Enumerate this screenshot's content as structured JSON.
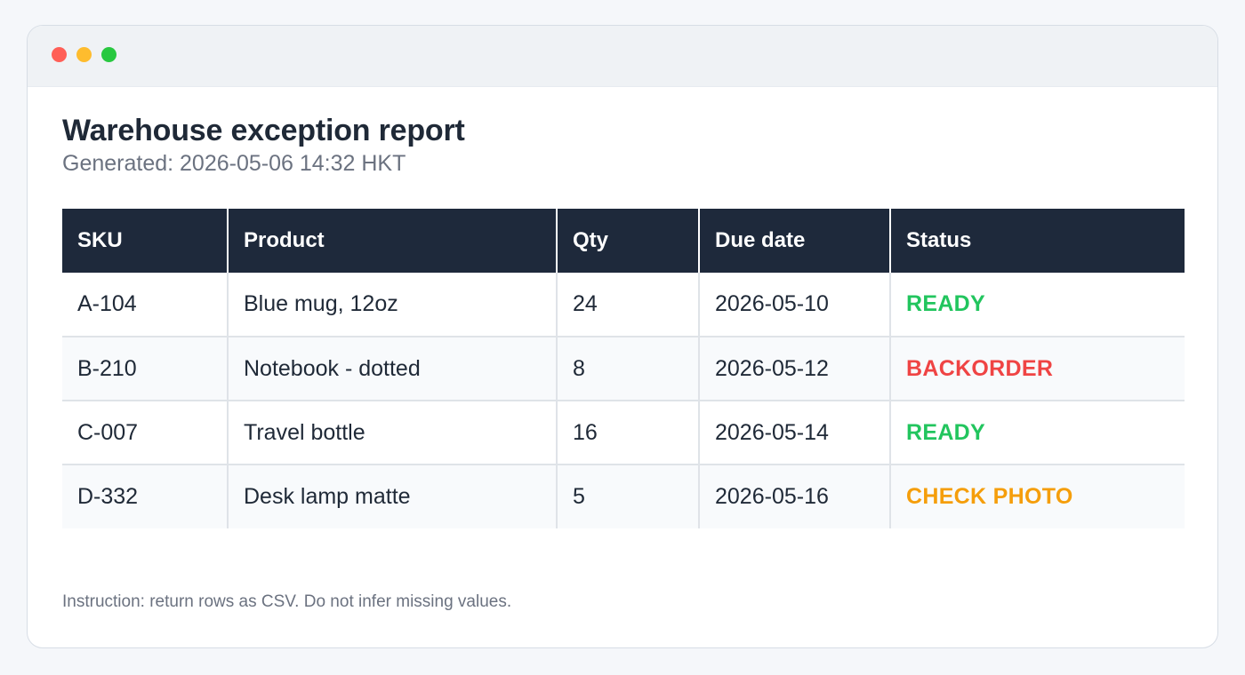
{
  "window": {
    "controls": {
      "close_color": "#ff5f57",
      "minimize_color": "#febc2e",
      "maximize_color": "#28c840"
    }
  },
  "report": {
    "title": "Warehouse exception report",
    "generated": "Generated: 2026-05-06 14:32 HKT"
  },
  "table": {
    "headers": [
      "SKU",
      "Product",
      "Qty",
      "Due date",
      "Status"
    ],
    "rows": [
      {
        "sku": "A-104",
        "product": "Blue mug, 12oz",
        "qty": "24",
        "due_date": "2026-05-10",
        "status": "READY",
        "status_color": "#22c55e"
      },
      {
        "sku": "B-210",
        "product": "Notebook - dotted",
        "qty": "8",
        "due_date": "2026-05-12",
        "status": "BACKORDER",
        "status_color": "#ef4444"
      },
      {
        "sku": "C-007",
        "product": "Travel bottle",
        "qty": "16",
        "due_date": "2026-05-14",
        "status": "READY",
        "status_color": "#22c55e"
      },
      {
        "sku": "D-332",
        "product": "Desk lamp matte",
        "qty": "5",
        "due_date": "2026-05-16",
        "status": "CHECK PHOTO",
        "status_color": "#f59e0b"
      }
    ]
  },
  "footer": {
    "instruction": "Instruction: return rows as CSV. Do not infer missing values."
  },
  "colors": {
    "header_bg": "#1e293b",
    "page_bg": "#f5f7fa",
    "ready": "#22c55e",
    "backorder": "#ef4444",
    "check_photo": "#f59e0b"
  }
}
